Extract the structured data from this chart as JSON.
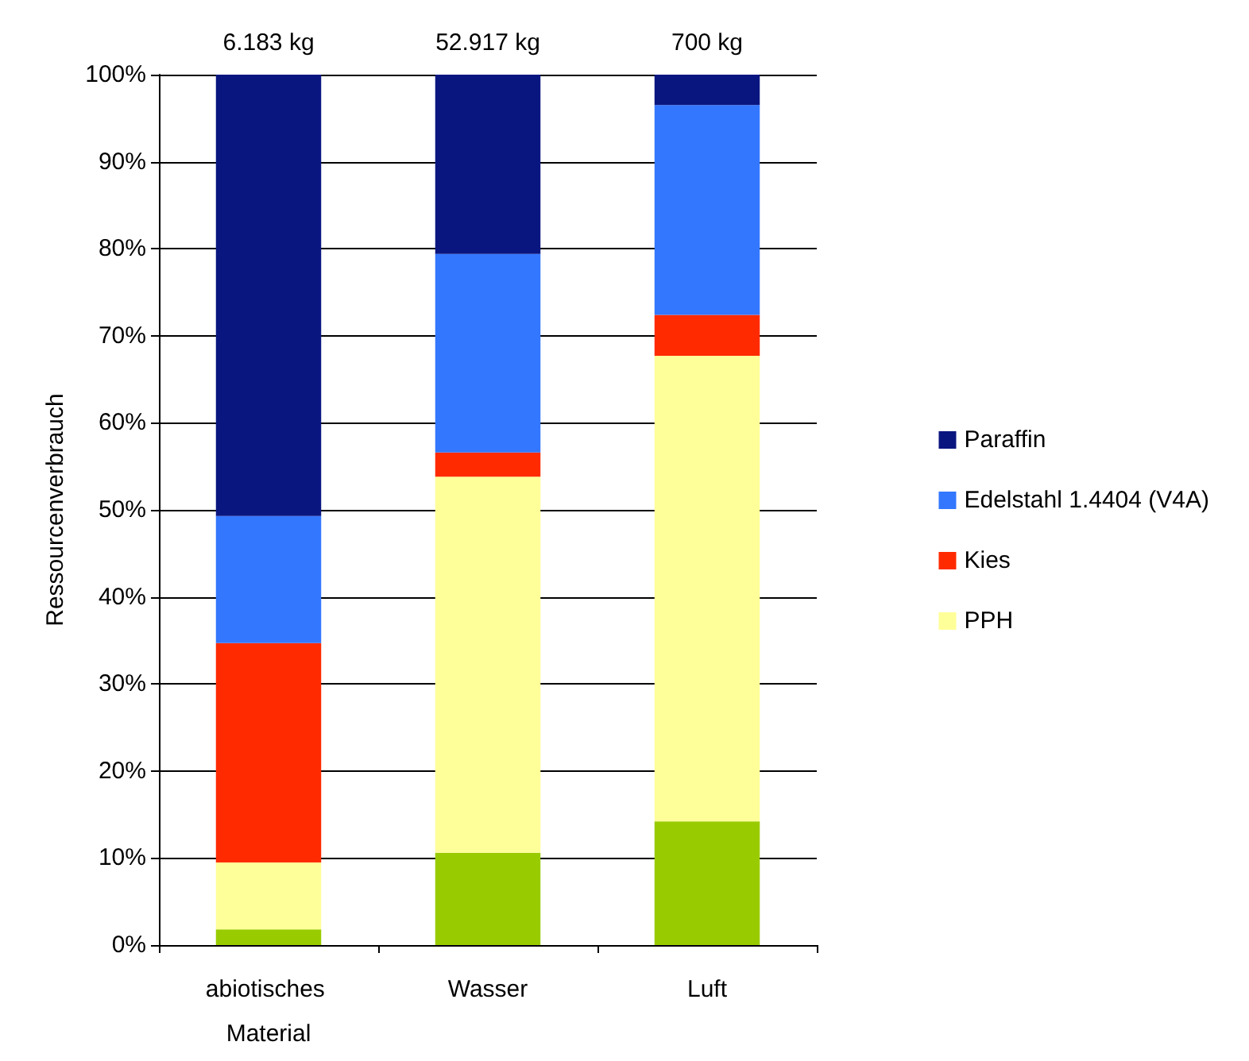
{
  "chart_data": {
    "type": "bar",
    "stacked": true,
    "ylabel": "Ressourcenverbrauch",
    "categories": [
      "abiotisches Material",
      "Wasser",
      "Luft"
    ],
    "series": [
      {
        "color": "#99cc00",
        "values": [
          1.8,
          10.6,
          14.2
        ]
      },
      {
        "name": "PPH",
        "color": "#ffff99",
        "values": [
          7.7,
          43.2,
          53.5
        ]
      },
      {
        "name": "Kies",
        "color": "#ff2a00",
        "values": [
          25.2,
          2.8,
          4.7
        ]
      },
      {
        "name": "Edelstahl 1.4404 (V4A)",
        "color": "#3377ff",
        "values": [
          14.6,
          22.8,
          24.1
        ]
      },
      {
        "name": "Paraffin",
        "color": "#0a1680",
        "values": [
          50.7,
          20.6,
          3.5
        ]
      }
    ],
    "annotations": [
      {
        "text": "6.183 kg",
        "x": "abiotisches Material",
        "y": 100
      },
      {
        "text": "52.917 kg",
        "x": "Wasser",
        "y": 100
      },
      {
        "text": "700 kg",
        "x": "Luft",
        "y": 100
      }
    ],
    "ylim": [
      0,
      100
    ],
    "yticks": [
      {
        "value": 0,
        "label": "0%"
      },
      {
        "value": 10,
        "label": "10%"
      },
      {
        "value": 20,
        "label": "20%"
      },
      {
        "value": 30,
        "label": "30%"
      },
      {
        "value": 40,
        "label": "40%"
      },
      {
        "value": 50,
        "label": "50%"
      },
      {
        "value": 60,
        "label": "60%"
      },
      {
        "value": 70,
        "label": "70%"
      },
      {
        "value": 80,
        "label": "80%"
      },
      {
        "value": 90,
        "label": "90%"
      },
      {
        "value": 100,
        "label": "100%"
      }
    ],
    "grid": "y",
    "legend": "right"
  }
}
